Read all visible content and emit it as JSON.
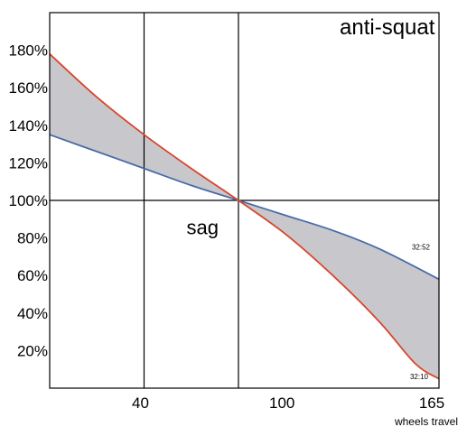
{
  "chart_data": {
    "type": "area",
    "title": "anti-squat",
    "xlabel": "wheels travel",
    "ylabel": "",
    "x_ticks": [
      {
        "value": 40,
        "label": "40"
      },
      {
        "value": 100,
        "label": "100"
      },
      {
        "value": 165,
        "label": "165"
      }
    ],
    "y_ticks": [
      {
        "value": 180,
        "label": "180%"
      },
      {
        "value": 160,
        "label": "160%"
      },
      {
        "value": 140,
        "label": "140%"
      },
      {
        "value": 120,
        "label": "120%"
      },
      {
        "value": 100,
        "label": "100%"
      },
      {
        "value": 80,
        "label": "80%"
      },
      {
        "value": 60,
        "label": "60%"
      },
      {
        "value": 40,
        "label": "40%"
      },
      {
        "value": 20,
        "label": "20%"
      }
    ],
    "xlim": [
      0,
      165
    ],
    "ylim": [
      0,
      200
    ],
    "vertical_lines": [
      40,
      80
    ],
    "horizontal_lines": [
      100
    ],
    "region_label": {
      "text": "sag",
      "x": 58,
      "y": 82
    },
    "series": [
      {
        "name": "32:52",
        "color": "#4a6aa8",
        "x": [
          0,
          20,
          40,
          60,
          80,
          100,
          120,
          140,
          165
        ],
        "y": [
          135,
          126,
          117,
          108,
          100,
          92,
          84,
          74,
          58
        ]
      },
      {
        "name": "32:10",
        "color": "#d9452b",
        "x": [
          0,
          20,
          40,
          60,
          80,
          100,
          120,
          140,
          155,
          165
        ],
        "y": [
          178,
          155,
          135,
          117,
          100,
          82,
          60,
          35,
          13,
          5
        ]
      }
    ],
    "fill_between": {
      "color": "#c8c8cc"
    },
    "grid": false
  }
}
